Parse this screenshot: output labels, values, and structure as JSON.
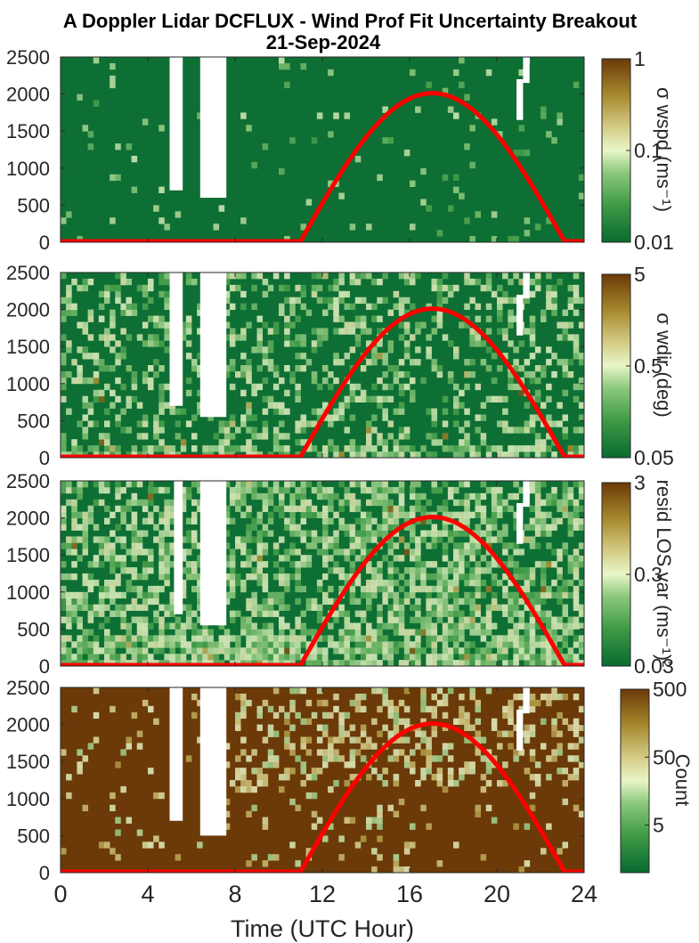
{
  "title": {
    "line1": "A Doppler Lidar DCFLUX - Wind Prof Fit Uncertainty Breakout",
    "line2": "21-Sep-2024"
  },
  "colors": {
    "background_dark_green": "#0e6f34",
    "count_brown": "#6b3a08",
    "no_data": "#ffffff",
    "overlay_curve": "#ff0000",
    "colormap": [
      "#0a6a30",
      "#3d9a45",
      "#8cc97c",
      "#e8f5c8",
      "#d6cf8a",
      "#a78a2e",
      "#6b3a08"
    ]
  },
  "chart_data": [
    {
      "type": "heatmap",
      "panel": "wspd-uncertainty",
      "title": "",
      "xlabel": "",
      "ylabel": "",
      "xlim": [
        0,
        24
      ],
      "ylim": [
        0,
        2500
      ],
      "yticks": [
        0,
        500,
        1000,
        1500,
        2000,
        2500
      ],
      "xticks": [
        0,
        4,
        8,
        12,
        16,
        20,
        24
      ],
      "grid": false,
      "background": "dark-green",
      "colorbar": {
        "label": "σ wspd (ms⁻¹)",
        "scale": "log",
        "range": [
          0.01,
          1
        ],
        "ticks": [
          0.01,
          0.1,
          1
        ],
        "ticklabels": [
          "0.01",
          "0.1",
          "1"
        ]
      },
      "missing_data_columns": [
        {
          "x": [
            5.0,
            5.6
          ],
          "y": [
            700,
            2500
          ]
        },
        {
          "x": [
            6.4,
            7.6
          ],
          "y": [
            600,
            2500
          ]
        },
        {
          "x": [
            20.9,
            21.2
          ],
          "y": [
            1650,
            2200
          ]
        },
        {
          "x": [
            21.2,
            21.5
          ],
          "y": [
            2150,
            2500
          ]
        }
      ],
      "overlay": {
        "name": "",
        "x_start": 11.0,
        "x_peak": 17.0,
        "x_end": 23.1,
        "y_peak": 2000
      }
    },
    {
      "type": "heatmap",
      "panel": "wdir-uncertainty",
      "title": "",
      "xlabel": "",
      "ylabel": "",
      "xlim": [
        0,
        24
      ],
      "ylim": [
        0,
        2500
      ],
      "yticks": [
        0,
        500,
        1000,
        1500,
        2000,
        2500
      ],
      "xticks": [
        0,
        4,
        8,
        12,
        16,
        20,
        24
      ],
      "grid": false,
      "background": "dark-green",
      "colorbar": {
        "label": "σ wdir (deg)",
        "scale": "log",
        "range": [
          0.05,
          5
        ],
        "ticks": [
          0.05,
          0.5,
          5
        ],
        "ticklabels": [
          "0.05",
          "0.5",
          "5"
        ]
      },
      "missing_data_columns": [
        {
          "x": [
            5.0,
            5.6
          ],
          "y": [
            700,
            2500
          ]
        },
        {
          "x": [
            6.4,
            7.6
          ],
          "y": [
            550,
            2500
          ]
        },
        {
          "x": [
            20.9,
            21.2
          ],
          "y": [
            1650,
            2200
          ]
        },
        {
          "x": [
            21.2,
            21.5
          ],
          "y": [
            2150,
            2500
          ]
        }
      ],
      "overlay": {
        "name": "",
        "x_start": 11.0,
        "x_peak": 17.0,
        "x_end": 23.1,
        "y_peak": 2000
      }
    },
    {
      "type": "heatmap",
      "panel": "resid-los-variance",
      "title": "",
      "xlabel": "",
      "ylabel": "",
      "xlim": [
        0,
        24
      ],
      "ylim": [
        0,
        2500
      ],
      "yticks": [
        0,
        500,
        1000,
        1500,
        2000,
        2500
      ],
      "xticks": [
        0,
        4,
        8,
        12,
        16,
        20,
        24
      ],
      "grid": false,
      "background": "dark-green",
      "colorbar": {
        "label": "resid LOS var (ms⁻¹)²",
        "scale": "log",
        "range": [
          0.03,
          3
        ],
        "ticks": [
          0.03,
          0.3,
          3
        ],
        "ticklabels": [
          "0.03",
          "0.3",
          "3"
        ]
      },
      "missing_data_columns": [
        {
          "x": [
            5.2,
            5.6
          ],
          "y": [
            700,
            2500
          ]
        },
        {
          "x": [
            6.4,
            7.6
          ],
          "y": [
            550,
            2500
          ]
        },
        {
          "x": [
            20.9,
            21.2
          ],
          "y": [
            1650,
            2200
          ]
        },
        {
          "x": [
            21.2,
            21.5
          ],
          "y": [
            2150,
            2500
          ]
        }
      ],
      "overlay": {
        "name": "",
        "x_start": 11.0,
        "x_peak": 17.0,
        "x_end": 23.1,
        "y_peak": 2000
      }
    },
    {
      "type": "heatmap",
      "panel": "count",
      "title": "",
      "xlabel": "Time (UTC Hour)",
      "ylabel": "",
      "xlim": [
        0,
        24
      ],
      "ylim": [
        0,
        2500
      ],
      "yticks": [
        0,
        500,
        1000,
        1500,
        2000,
        2500
      ],
      "xticks": [
        0,
        4,
        8,
        12,
        16,
        20,
        24
      ],
      "grid": false,
      "background": "dark-brown",
      "colorbar": {
        "label": "Count",
        "scale": "log",
        "range": [
          1,
          500
        ],
        "ticks": [
          5,
          50,
          500
        ],
        "ticklabels": [
          "5",
          "50",
          "500"
        ]
      },
      "missing_data_columns": [
        {
          "x": [
            5.0,
            5.6
          ],
          "y": [
            700,
            2500
          ]
        },
        {
          "x": [
            6.4,
            7.6
          ],
          "y": [
            500,
            2500
          ]
        },
        {
          "x": [
            20.9,
            21.2
          ],
          "y": [
            1650,
            2200
          ]
        },
        {
          "x": [
            21.2,
            21.5
          ],
          "y": [
            2150,
            2500
          ]
        }
      ],
      "overlay": {
        "name": "",
        "x_start": 11.0,
        "x_peak": 17.0,
        "x_end": 23.1,
        "y_peak": 2000
      }
    }
  ]
}
